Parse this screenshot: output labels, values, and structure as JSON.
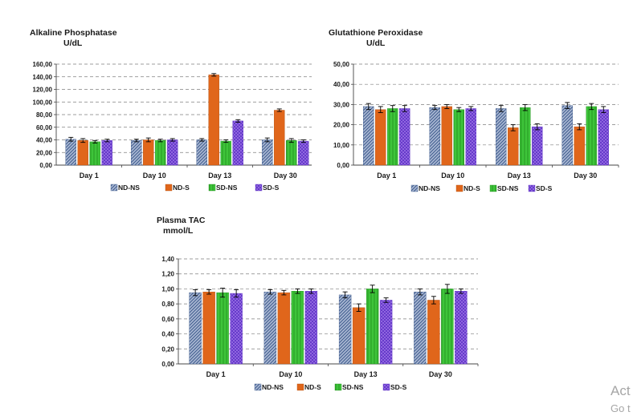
{
  "patterns": {
    "ND-NS": {
      "fill": "#aab8d3",
      "stroke": "#3d5a8c",
      "kind": "diag"
    },
    "ND-S": {
      "fill": "#e0661b",
      "stroke": "#b24e0d",
      "kind": "solid"
    },
    "SD-NS": {
      "fill": "#3ec43a",
      "stroke": "#1e8f1a",
      "kind": "vert"
    },
    "SD-S": {
      "fill": "#9b72e6",
      "stroke": "#5b2fc4",
      "kind": "cross"
    }
  },
  "chart_data": [
    {
      "type": "bar",
      "title": "Alkaline Phosphatase",
      "subtitle": "U/dL",
      "categories": [
        "Day 1",
        "Day 10",
        "Day 13",
        "Day 30"
      ],
      "ylim": [
        0,
        160
      ],
      "yticks": [
        "0,00",
        "20,00",
        "40,00",
        "60,00",
        "80,00",
        "100,00",
        "120,00",
        "140,00",
        "160,00"
      ],
      "grid": true,
      "legend_position": "bottom",
      "series": [
        {
          "name": "ND-NS",
          "values": [
            41,
            39,
            40,
            40
          ],
          "errors": [
            3,
            2,
            2,
            3
          ]
        },
        {
          "name": "ND-S",
          "values": [
            39,
            40,
            143,
            87
          ],
          "errors": [
            3,
            3,
            2,
            2
          ]
        },
        {
          "name": "SD-NS",
          "values": [
            37,
            39,
            38,
            39
          ],
          "errors": [
            2,
            2,
            2,
            3
          ]
        },
        {
          "name": "SD-S",
          "values": [
            39,
            40,
            70,
            38
          ],
          "errors": [
            2,
            2,
            2,
            2
          ]
        }
      ]
    },
    {
      "type": "bar",
      "title": "Glutathione Peroxidase",
      "subtitle": "U/dL",
      "categories": [
        "Day 1",
        "Day 10",
        "Day 13",
        "Day 30"
      ],
      "ylim": [
        0,
        50
      ],
      "yticks": [
        "0,00",
        "10,00",
        "20,00",
        "30,00",
        "40,00",
        "50,00"
      ],
      "grid": true,
      "legend_position": "bottom",
      "series": [
        {
          "name": "ND-NS",
          "values": [
            29,
            28.5,
            28,
            29.5
          ],
          "errors": [
            1.5,
            1,
            1.5,
            1.5
          ]
        },
        {
          "name": "ND-S",
          "values": [
            27.5,
            29,
            18.5,
            19
          ],
          "errors": [
            1.5,
            1,
            1.5,
            1.5
          ]
        },
        {
          "name": "SD-NS",
          "values": [
            28,
            27.5,
            28.5,
            29
          ],
          "errors": [
            1.5,
            1,
            1.5,
            1.5
          ]
        },
        {
          "name": "SD-S",
          "values": [
            28,
            28,
            19,
            27.5
          ],
          "errors": [
            1.5,
            1,
            1.5,
            1.5
          ]
        }
      ]
    },
    {
      "type": "bar",
      "title": "Plasma TAC",
      "subtitle": "mmol/L",
      "categories": [
        "Day 1",
        "Day 10",
        "Day 13",
        "Day 30"
      ],
      "ylim": [
        0,
        1.4
      ],
      "yticks": [
        "0,00",
        "0,20",
        "0,40",
        "0,60",
        "0,80",
        "1,00",
        "1,20",
        "1,40"
      ],
      "grid": true,
      "legend_position": "bottom",
      "series": [
        {
          "name": "ND-NS",
          "values": [
            0.95,
            0.96,
            0.92,
            0.96
          ],
          "errors": [
            0.04,
            0.03,
            0.04,
            0.04
          ]
        },
        {
          "name": "ND-S",
          "values": [
            0.96,
            0.95,
            0.75,
            0.85
          ],
          "errors": [
            0.03,
            0.03,
            0.05,
            0.05
          ]
        },
        {
          "name": "SD-NS",
          "values": [
            0.95,
            0.97,
            1.0,
            1.0
          ],
          "errors": [
            0.06,
            0.03,
            0.05,
            0.06
          ]
        },
        {
          "name": "SD-S",
          "values": [
            0.94,
            0.97,
            0.85,
            0.97
          ],
          "errors": [
            0.05,
            0.03,
            0.03,
            0.03
          ]
        }
      ]
    }
  ],
  "watermark": {
    "line1": "Act",
    "line2": "Go t"
  }
}
